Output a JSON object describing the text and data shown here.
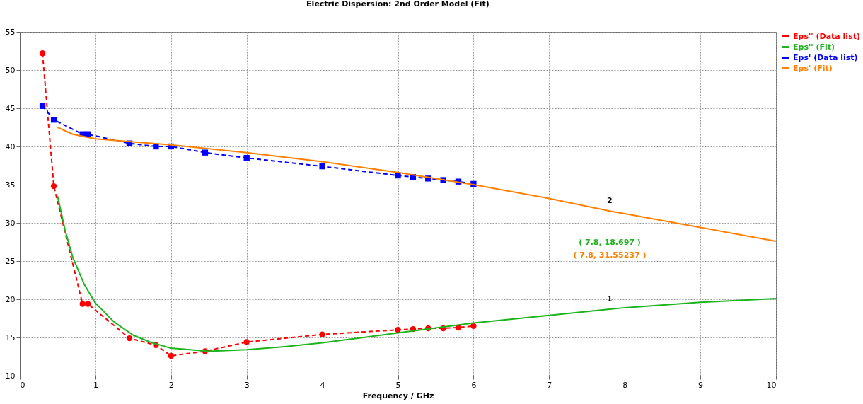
{
  "chart_data": {
    "type": "line",
    "title": "Electric Dispersion: 2nd Order Model (Fit)",
    "xlabel": "Frequency / GHz",
    "xlim": [
      0,
      10
    ],
    "xticks": [
      0,
      1,
      2,
      3,
      4,
      5,
      6,
      7,
      8,
      9,
      10
    ],
    "ylim": [
      10,
      55
    ],
    "yticks": [
      10,
      15,
      20,
      25,
      30,
      35,
      40,
      45,
      50,
      55
    ],
    "grid": true,
    "legend": "top right",
    "series": [
      {
        "name": "Eps'' (Data list)",
        "color": "#ff0000",
        "marker": "circle",
        "line_style": "dashed",
        "x": [
          0.3,
          0.45,
          0.83,
          0.9,
          1.45,
          1.8,
          2.0,
          2.45,
          3.0,
          4.0,
          5.0,
          5.2,
          5.4,
          5.6,
          5.8,
          6.0
        ],
        "values": [
          52.2,
          34.8,
          19.4,
          19.4,
          14.9,
          14.0,
          12.6,
          13.2,
          14.4,
          15.4,
          16.0,
          16.1,
          16.2,
          16.2,
          16.3,
          16.5
        ]
      },
      {
        "name": "Eps'' (Fit)",
        "color": "#1cb41c",
        "marker": "none",
        "line_style": "solid",
        "x": [
          0.5,
          0.6,
          0.7,
          0.85,
          1.0,
          1.25,
          1.5,
          1.75,
          2.0,
          2.5,
          3.0,
          3.5,
          4.0,
          5.0,
          6.0,
          7.0,
          7.8,
          8.0,
          9.0,
          10.0
        ],
        "values": [
          33.5,
          29.0,
          25.5,
          22.0,
          19.5,
          17.0,
          15.3,
          14.3,
          13.6,
          13.2,
          13.4,
          13.8,
          14.3,
          15.6,
          16.9,
          17.9,
          18.7,
          18.9,
          19.6,
          20.1
        ]
      },
      {
        "name": "Eps' (Data list)",
        "color": "#0000ff",
        "marker": "square",
        "line_style": "dashed",
        "x": [
          0.3,
          0.45,
          0.83,
          0.9,
          1.45,
          1.8,
          2.0,
          2.45,
          3.0,
          4.0,
          5.0,
          5.2,
          5.4,
          5.6,
          5.8,
          6.0
        ],
        "values": [
          45.3,
          43.5,
          41.6,
          41.6,
          40.4,
          40.0,
          40.0,
          39.2,
          38.5,
          37.4,
          36.2,
          36.0,
          35.8,
          35.6,
          35.4,
          35.1
        ]
      },
      {
        "name": "Eps' (Fit)",
        "color": "#ff8000",
        "marker": "none",
        "line_style": "solid",
        "x": [
          0.5,
          0.7,
          1.0,
          1.5,
          2.0,
          3.0,
          4.0,
          5.0,
          6.0,
          7.0,
          7.8,
          8.0,
          9.0,
          10.0
        ],
        "values": [
          42.5,
          41.6,
          41.0,
          40.6,
          40.2,
          39.2,
          38.0,
          36.6,
          35.0,
          33.2,
          31.55,
          31.2,
          29.4,
          27.6
        ]
      }
    ],
    "annotations": [
      {
        "text": "1",
        "x": 7.8,
        "y": 18.7
      },
      {
        "text": "2",
        "x": 7.8,
        "y": 31.55
      },
      "( 7.8, 18.697 )",
      "( 7.8, 31.55237 )"
    ]
  }
}
